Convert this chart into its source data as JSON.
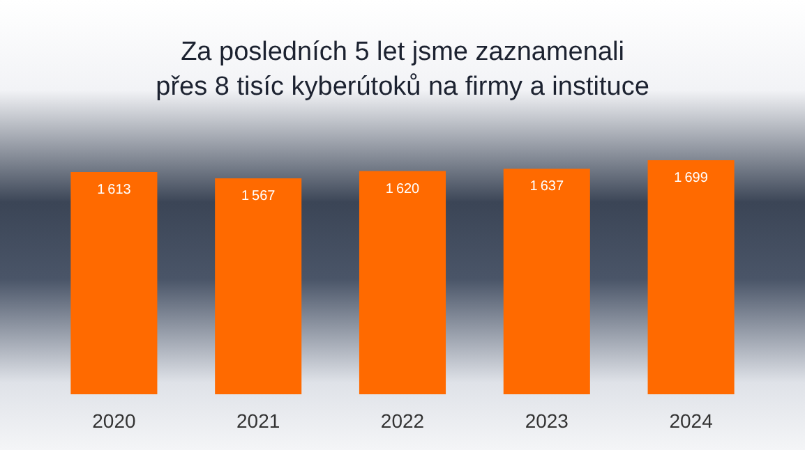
{
  "chart_data": {
    "type": "bar",
    "title": "Za posledních 5 let jsme zaznamenali\npřes 8 tisíc kyberútoků na firmy a instituce",
    "categories": [
      "2020",
      "2021",
      "2022",
      "2023",
      "2024"
    ],
    "values": [
      1613,
      1567,
      1620,
      1637,
      1699
    ],
    "color": "#ff6a00",
    "data_labels": true
  }
}
